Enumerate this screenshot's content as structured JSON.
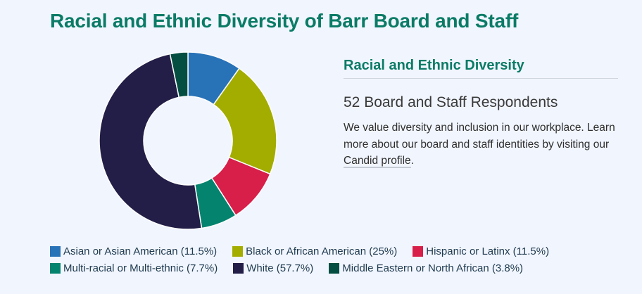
{
  "title": "Racial and Ethnic Diversity of Barr Board and Staff",
  "side_panel": {
    "heading": "Racial and Ethnic Diversity",
    "count_text": "52 Board and Staff Respondents",
    "description_prefix": "We value diversity and inclusion in our workplace. Learn more about our board and staff identities by visiting our ",
    "link_text": "Candid profile",
    "description_suffix": "."
  },
  "colors": {
    "background": "#f1f5fe",
    "title": "#0a7b66"
  },
  "chart_data": {
    "type": "pie",
    "subtype": "donut",
    "title": "Racial and Ethnic Diversity of Barr Board and Staff",
    "total_respondents": 52,
    "start_angle_deg": 0,
    "direction": "clockwise",
    "legend_position": "bottom",
    "categories": [
      "Asian or Asian American",
      "Black or African American",
      "Hispanic or Latinx",
      "Multi-racial or Multi-ethnic",
      "White",
      "Middle Eastern or North African"
    ],
    "values": [
      11.5,
      25,
      11.5,
      7.7,
      57.7,
      3.8
    ],
    "colors": [
      "#2872b7",
      "#a3ad00",
      "#d71f4a",
      "#04836f",
      "#221e47",
      "#034e41"
    ],
    "legend_labels": [
      "Asian or Asian American (11.5%)",
      "Black or African American (25%)",
      "Hispanic or Latinx (11.5%)",
      "Multi-racial or Multi-ethnic (7.7%)",
      "White (57.7%)",
      "Middle Eastern or North African (3.8%)"
    ]
  }
}
